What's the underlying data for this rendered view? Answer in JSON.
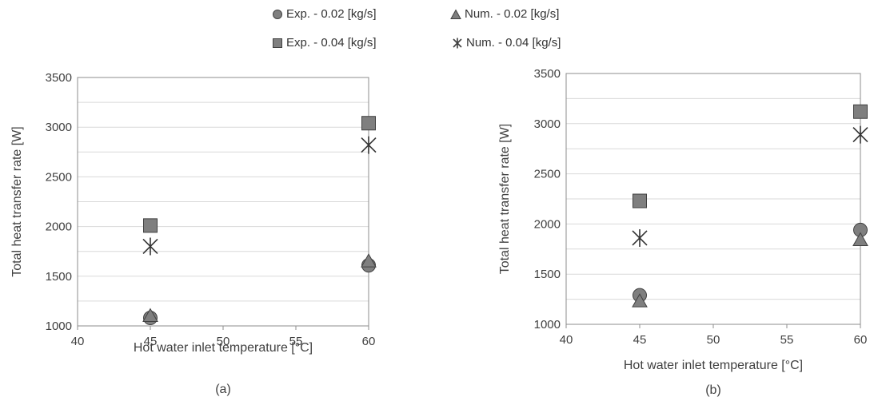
{
  "legend": [
    {
      "label": "Exp. - 0.02 [kg/s]",
      "marker": "circle"
    },
    {
      "label": "Num. - 0.02 [kg/s]",
      "marker": "triangle"
    },
    {
      "label": "Exp. - 0.04 [kg/s]",
      "marker": "square"
    },
    {
      "label": "Num. - 0.04 [kg/s]",
      "marker": "asterisk"
    }
  ],
  "colors": {
    "marker_fill": "#7f7f7f",
    "marker_stroke": "#404040",
    "grid": "#d9d9d9",
    "axis": "#8c8c8c",
    "text": "#404040"
  },
  "chart_data": [
    {
      "type": "scatter",
      "panel_label": "(a)",
      "xlabel": "Hot water inlet temperature [°C]",
      "ylabel": "Total heat transfer rate [W]",
      "xlim": [
        40,
        60
      ],
      "ylim": [
        1000,
        3500
      ],
      "xticks": [
        40,
        45,
        50,
        55,
        60
      ],
      "yticks": [
        1000,
        1500,
        2000,
        2500,
        3000,
        3500
      ],
      "grid_step": 250,
      "grid": true,
      "series": [
        {
          "name": "Exp. - 0.02 [kg/s]",
          "marker": "circle",
          "x": [
            45,
            60
          ],
          "y": [
            1080,
            1610
          ]
        },
        {
          "name": "Num. - 0.02 [kg/s]",
          "marker": "triangle",
          "x": [
            45,
            60
          ],
          "y": [
            1100,
            1650
          ]
        },
        {
          "name": "Exp. - 0.04 [kg/s]",
          "marker": "square",
          "x": [
            45,
            60
          ],
          "y": [
            2010,
            3040
          ]
        },
        {
          "name": "Num. - 0.04 [kg/s]",
          "marker": "asterisk",
          "x": [
            45,
            60
          ],
          "y": [
            1800,
            2820
          ]
        }
      ]
    },
    {
      "type": "scatter",
      "panel_label": "(b)",
      "xlabel": "Hot water inlet temperature [°C]",
      "ylabel": "Total heat transfer rate [W]",
      "xlim": [
        40,
        60
      ],
      "ylim": [
        1000,
        3500
      ],
      "xticks": [
        40,
        45,
        50,
        55,
        60
      ],
      "yticks": [
        1000,
        1500,
        2000,
        2500,
        3000,
        3500
      ],
      "grid_step": 250,
      "grid": true,
      "series": [
        {
          "name": "Exp. - 0.02 [kg/s]",
          "marker": "circle",
          "x": [
            45,
            60
          ],
          "y": [
            1290,
            1940
          ]
        },
        {
          "name": "Num. - 0.02 [kg/s]",
          "marker": "triangle",
          "x": [
            45,
            60
          ],
          "y": [
            1230,
            1840
          ]
        },
        {
          "name": "Exp. - 0.04 [kg/s]",
          "marker": "square",
          "x": [
            45,
            60
          ],
          "y": [
            2230,
            3120
          ]
        },
        {
          "name": "Num. - 0.04 [kg/s]",
          "marker": "asterisk",
          "x": [
            45,
            60
          ],
          "y": [
            1860,
            2890
          ]
        }
      ]
    }
  ]
}
